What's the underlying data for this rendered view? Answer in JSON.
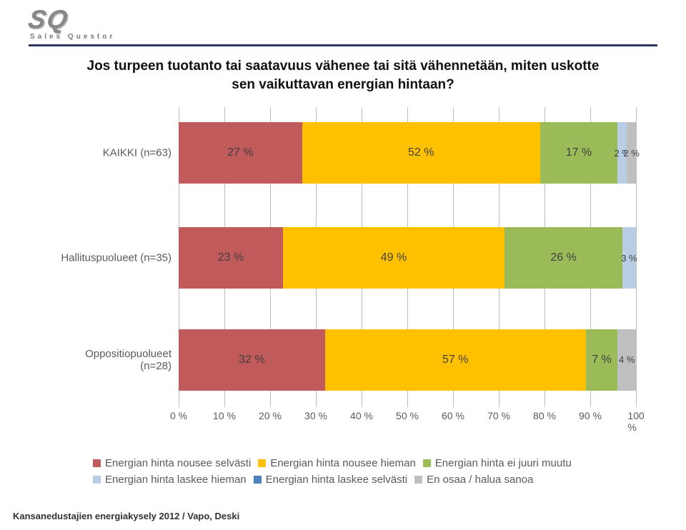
{
  "logo": {
    "mark": "SQ",
    "subtitle": "Sales Questor"
  },
  "rule_color": "#2a3a5f",
  "chart": {
    "type": "stacked-bar-horizontal",
    "title": "Jos turpeen tuotanto tai saatavuus vähenee tai sitä vähennetään, miten uskotte sen vaikuttavan energian hintaan?",
    "title_fontsize": 19,
    "title_color": "#111111",
    "background_color": "#ffffff",
    "grid_color": "#bdbdbd",
    "label_color": "#5a5a5a",
    "value_label_color": "#404040",
    "value_label_fontsize": 16,
    "category_label_fontsize": 15,
    "xtick_fontsize": 14,
    "xlim": [
      0,
      100
    ],
    "xtick_step": 10,
    "xticks": [
      "0 %",
      "10 %",
      "20 %",
      "30 %",
      "40 %",
      "50 %",
      "60 %",
      "70 %",
      "80 %",
      "90 %",
      "100 %"
    ],
    "categories": [
      {
        "label": "KAIKKI (n=63)",
        "top_pct": 5,
        "segments": [
          {
            "series": 0,
            "value": 27,
            "label": "27 %"
          },
          {
            "series": 1,
            "value": 52,
            "label": "52 %"
          },
          {
            "series": 2,
            "value": 17,
            "label": "17 %"
          },
          {
            "series": 3,
            "value": 2,
            "label": "2 %"
          },
          {
            "series": 5,
            "value": 2,
            "label": "2 %"
          }
        ]
      },
      {
        "label": "Hallituspuolueet (n=35)",
        "top_pct": 40,
        "segments": [
          {
            "series": 0,
            "value": 23,
            "label": "23 %"
          },
          {
            "series": 1,
            "value": 49,
            "label": "49 %"
          },
          {
            "series": 2,
            "value": 26,
            "label": "26 %"
          },
          {
            "series": 3,
            "value": 3,
            "label": "3 %"
          }
        ]
      },
      {
        "label": "Oppositiopuolueet (n=28)",
        "top_pct": 74,
        "segments": [
          {
            "series": 0,
            "value": 32,
            "label": "32 %"
          },
          {
            "series": 1,
            "value": 57,
            "label": "57 %"
          },
          {
            "series": 2,
            "value": 7,
            "label": "7 %"
          },
          {
            "series": 5,
            "value": 4,
            "label": "4 %"
          }
        ]
      }
    ],
    "series": [
      {
        "name": "Energian hinta nousee selvästi",
        "color": "#c15a5a"
      },
      {
        "name": "Energian hinta nousee hieman",
        "color": "#ffc000"
      },
      {
        "name": "Energian hinta ei juuri muutu",
        "color": "#9bbb59"
      },
      {
        "name": "Energian hinta laskee hieman",
        "color": "#b9cde5"
      },
      {
        "name": "Energian hinta laskee selvästi",
        "color": "#4f81bd"
      },
      {
        "name": "En osaa / halua sanoa",
        "color": "#bfbfbf"
      }
    ],
    "legend": {
      "fontsize": 15,
      "rows": [
        [
          0,
          1,
          2
        ],
        [
          3,
          4,
          5
        ]
      ]
    }
  },
  "footer": "Kansanedustajien energiakysely 2012 / Vapo, Deski"
}
